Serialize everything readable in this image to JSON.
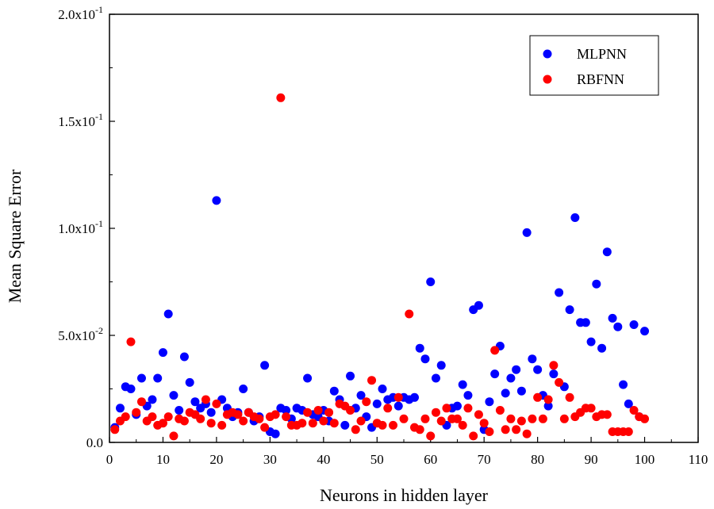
{
  "chart_data": {
    "type": "scatter",
    "xlabel": "Neurons in hidden layer",
    "ylabel": "Mean Square Error",
    "xlim": [
      0,
      110
    ],
    "ylim": [
      0,
      0.2
    ],
    "x_ticks": [
      0,
      10,
      20,
      30,
      40,
      50,
      60,
      70,
      80,
      90,
      100,
      110
    ],
    "x_tick_labels": [
      "0",
      "10",
      "20",
      "30",
      "40",
      "50",
      "60",
      "70",
      "80",
      "90",
      "100",
      "110"
    ],
    "y_ticks": [
      0,
      0.05,
      0.1,
      0.15,
      0.2
    ],
    "y_tick_labels": [
      {
        "mantissa": "0.0",
        "exponent": ""
      },
      {
        "mantissa": "5.0x10",
        "exponent": "-2"
      },
      {
        "mantissa": "1.0x10",
        "exponent": "-1"
      },
      {
        "mantissa": "1.5x10",
        "exponent": "-1"
      },
      {
        "mantissa": "2.0x10",
        "exponent": "-1"
      }
    ],
    "grid": false,
    "legend_position": "top-right",
    "series": [
      {
        "name": "MLPNN",
        "color": "#0000ff",
        "x": [
          1,
          2,
          3,
          4,
          5,
          6,
          7,
          8,
          9,
          10,
          11,
          12,
          13,
          14,
          15,
          16,
          17,
          18,
          19,
          20,
          21,
          22,
          23,
          24,
          25,
          26,
          27,
          28,
          29,
          30,
          31,
          32,
          33,
          34,
          35,
          36,
          37,
          38,
          39,
          40,
          41,
          42,
          43,
          44,
          45,
          46,
          47,
          48,
          49,
          50,
          51,
          52,
          53,
          54,
          55,
          56,
          57,
          58,
          59,
          60,
          61,
          62,
          63,
          64,
          65,
          66,
          67,
          68,
          69,
          70,
          71,
          72,
          73,
          74,
          75,
          76,
          77,
          78,
          79,
          80,
          81,
          82,
          83,
          84,
          85,
          86,
          87,
          88,
          89,
          90,
          91,
          92,
          93,
          94,
          95,
          96,
          97,
          98,
          99,
          100
        ],
        "y": [
          0.007,
          0.016,
          0.026,
          0.025,
          0.013,
          0.03,
          0.017,
          0.02,
          0.03,
          0.042,
          0.06,
          0.022,
          0.015,
          0.04,
          0.028,
          0.019,
          0.016,
          0.018,
          0.014,
          0.113,
          0.02,
          0.016,
          0.012,
          0.014,
          0.025,
          0.014,
          0.01,
          0.012,
          0.036,
          0.005,
          0.004,
          0.016,
          0.015,
          0.011,
          0.016,
          0.015,
          0.03,
          0.013,
          0.012,
          0.015,
          0.01,
          0.024,
          0.02,
          0.008,
          0.031,
          0.016,
          0.022,
          0.012,
          0.007,
          0.018,
          0.025,
          0.02,
          0.021,
          0.017,
          0.021,
          0.02,
          0.021,
          0.044,
          0.039,
          0.075,
          0.03,
          0.036,
          0.008,
          0.016,
          0.017,
          0.027,
          0.022,
          0.062,
          0.064,
          0.006,
          0.019,
          0.032,
          0.045,
          0.023,
          0.03,
          0.034,
          0.024,
          0.098,
          0.039,
          0.034,
          0.022,
          0.017,
          0.032,
          0.07,
          0.026,
          0.062,
          0.105,
          0.056,
          0.056,
          0.047,
          0.074,
          0.044,
          0.089,
          0.058,
          0.054,
          0.027,
          0.018,
          0.055,
          0.012,
          0.052
        ]
      },
      {
        "name": "RBFNN",
        "color": "#ff0000",
        "x": [
          1,
          2,
          3,
          4,
          5,
          6,
          7,
          8,
          9,
          10,
          11,
          12,
          13,
          14,
          15,
          16,
          17,
          18,
          19,
          20,
          21,
          22,
          23,
          24,
          25,
          26,
          27,
          28,
          29,
          30,
          31,
          32,
          33,
          34,
          35,
          36,
          37,
          38,
          39,
          40,
          41,
          42,
          43,
          44,
          45,
          46,
          47,
          48,
          49,
          50,
          51,
          52,
          53,
          54,
          55,
          56,
          57,
          58,
          59,
          60,
          61,
          62,
          63,
          64,
          65,
          66,
          67,
          68,
          69,
          70,
          71,
          72,
          73,
          74,
          75,
          76,
          77,
          78,
          79,
          80,
          81,
          82,
          83,
          84,
          85,
          86,
          87,
          88,
          89,
          90,
          91,
          92,
          93,
          94,
          95,
          96,
          97,
          98,
          99,
          100
        ],
        "y": [
          0.006,
          0.01,
          0.012,
          0.047,
          0.014,
          0.019,
          0.01,
          0.012,
          0.008,
          0.009,
          0.012,
          0.003,
          0.011,
          0.01,
          0.014,
          0.013,
          0.011,
          0.02,
          0.009,
          0.018,
          0.008,
          0.013,
          0.014,
          0.013,
          0.01,
          0.014,
          0.012,
          0.011,
          0.007,
          0.012,
          0.013,
          0.161,
          0.012,
          0.008,
          0.008,
          0.009,
          0.014,
          0.009,
          0.015,
          0.01,
          0.014,
          0.009,
          0.018,
          0.017,
          0.015,
          0.006,
          0.01,
          0.019,
          0.029,
          0.009,
          0.008,
          0.016,
          0.008,
          0.021,
          0.011,
          0.06,
          0.007,
          0.006,
          0.011,
          0.003,
          0.014,
          0.01,
          0.016,
          0.011,
          0.011,
          0.008,
          0.016,
          0.003,
          0.013,
          0.009,
          0.005,
          0.043,
          0.015,
          0.006,
          0.011,
          0.006,
          0.01,
          0.004,
          0.011,
          0.021,
          0.011,
          0.02,
          0.036,
          0.028,
          0.011,
          0.021,
          0.012,
          0.014,
          0.016,
          0.016,
          0.012,
          0.013,
          0.013,
          0.005,
          0.005,
          0.005,
          0.005,
          0.015,
          0.012,
          0.011
        ]
      }
    ]
  }
}
